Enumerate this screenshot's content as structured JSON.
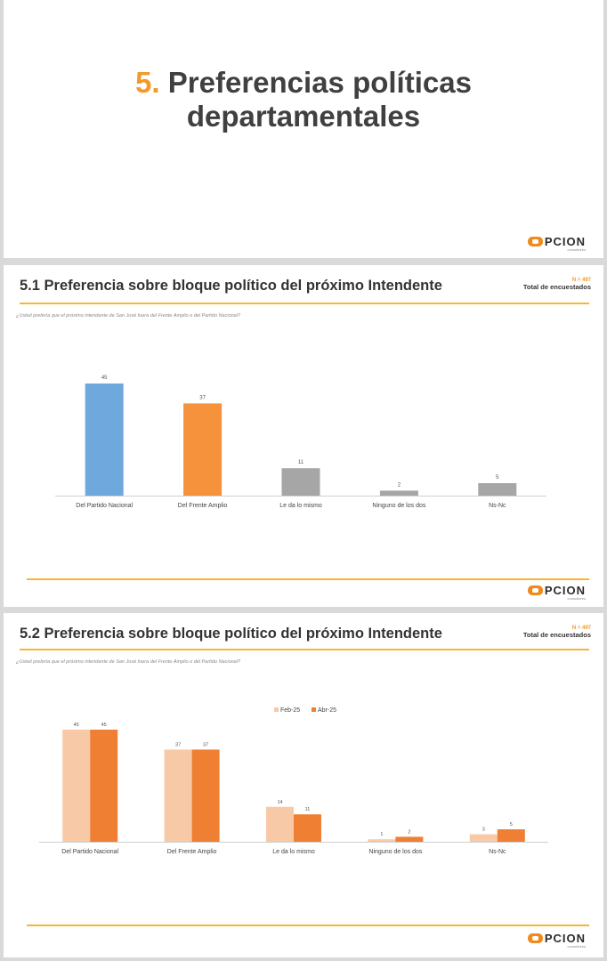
{
  "title_slide": {
    "number": "5.",
    "title_line1": "Preferencias políticas",
    "title_line2": "departamentales"
  },
  "logo": {
    "text": "PCION",
    "subtitle": "consultores"
  },
  "chart_data": [
    {
      "type": "bar",
      "title": "5.1 Preferencia sobre bloque político del próximo Intendente",
      "question": "¿Usted prefería que el próximo intendente de San José fuera del Frente Amplio o del Partido Nacional?",
      "sample_size": "N = 497",
      "sample_label": "Total de encuestados",
      "categories": [
        "Del Partido Nacional",
        "Del Frente Amplio",
        "Le da lo mismo",
        "Ninguno de los dos",
        "Ns-Nc"
      ],
      "values": [
        45,
        37,
        11,
        2,
        5
      ],
      "colors": [
        "#6fa8dc",
        "#f6913c",
        "#a6a6a6",
        "#a6a6a6",
        "#a6a6a6"
      ],
      "ylim": [
        0,
        50
      ],
      "grid": false
    },
    {
      "type": "bar",
      "title": "5.2 Preferencia sobre bloque político del próximo Intendente",
      "question": "¿Usted prefería que el próximo intendente de San José fuera del Frente Amplio o del Partido Nacional?",
      "sample_size": "N = 497",
      "sample_label": "Total de encuestados",
      "categories": [
        "Del Partido Nacional",
        "Del Frente Amplio",
        "Le da lo mismo",
        "Ninguno de los dos",
        "Ns-Nc"
      ],
      "series": [
        {
          "name": "Feb-25",
          "values": [
            45,
            37,
            14,
            1,
            3
          ],
          "color": "#f8c9a6"
        },
        {
          "name": "Abr-25",
          "values": [
            45,
            37,
            11,
            2,
            5
          ],
          "color": "#ef7f32"
        }
      ],
      "ylim": [
        0,
        50
      ],
      "legend": "top-center",
      "grid": false
    }
  ]
}
